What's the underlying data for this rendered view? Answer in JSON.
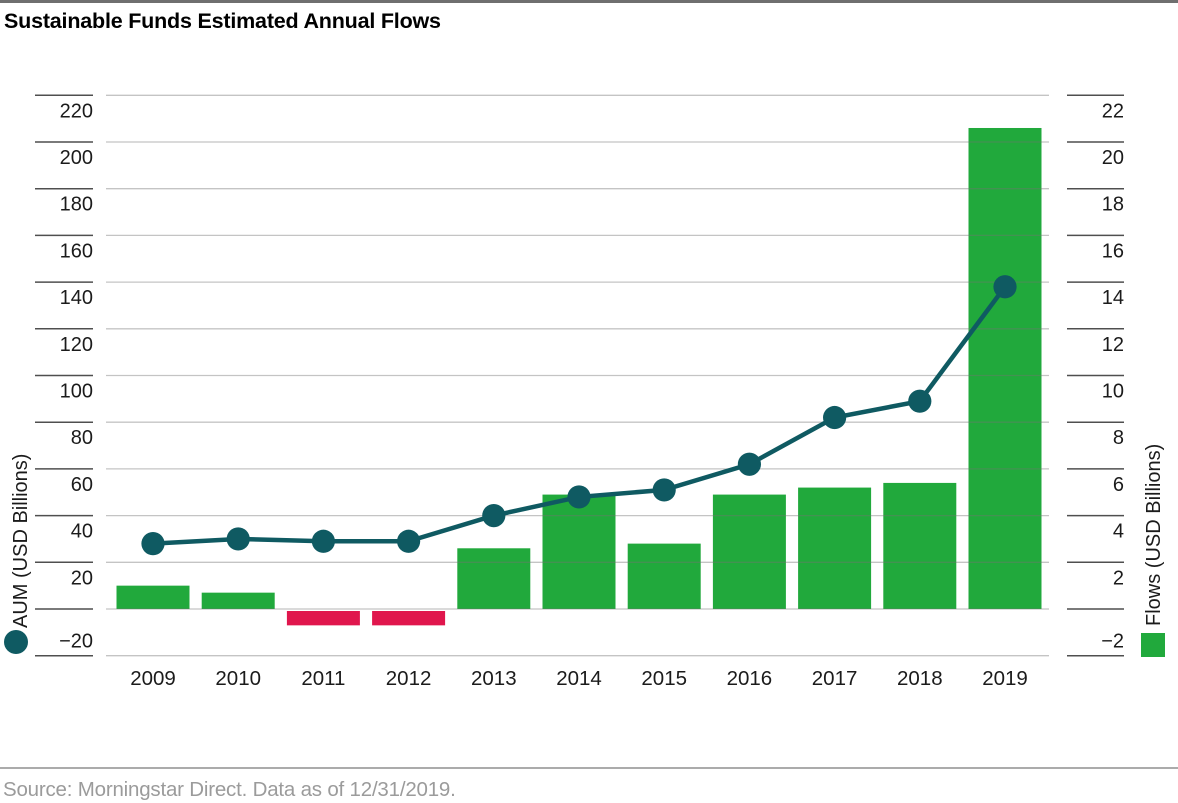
{
  "header": {
    "title": "Sustainable Funds Estimated Annual Flows"
  },
  "source": {
    "text": "Source: Morningstar Direct. Data as of 12/31/2019."
  },
  "colors": {
    "bar_positive": "#21a93c",
    "bar_negative": "#e0164d",
    "line": "#0f5a62",
    "gridline": "#c9c9c9",
    "axis_tick": "#4f4f4f",
    "tick_text": "#1b1b1b",
    "source_text": "#9b9b9b"
  },
  "chart_data": {
    "type": "bar",
    "subtype": "combo bar+line, dual axis",
    "title": "Sustainable Funds Estimated Annual Flows",
    "categories": [
      "2009",
      "2010",
      "2011",
      "2012",
      "2013",
      "2014",
      "2015",
      "2016",
      "2017",
      "2018",
      "2019"
    ],
    "series": [
      {
        "name": "Flows (USD Billions)",
        "type": "bar",
        "axis": "right",
        "values": [
          1.0,
          0.7,
          -0.7,
          -0.7,
          2.6,
          4.9,
          2.8,
          4.9,
          5.2,
          5.4,
          20.6
        ],
        "color_positive": "#21a93c",
        "color_negative": "#e0164d",
        "legend_marker": "square"
      },
      {
        "name": "AUM (USD Billions)",
        "type": "line",
        "axis": "left",
        "values": [
          28,
          30,
          29,
          29,
          40,
          48,
          51,
          62,
          82,
          89,
          138
        ],
        "color": "#0f5a62",
        "legend_marker": "circle"
      }
    ],
    "left_axis": {
      "label": "AUM (USD Billions)",
      "ticks": [
        220,
        200,
        180,
        160,
        140,
        120,
        100,
        80,
        60,
        40,
        20,
        -20
      ],
      "range": [
        -20,
        225
      ],
      "zero_line_unlabeled": true
    },
    "right_axis": {
      "label": "Flows (USD Billions)",
      "ticks": [
        22,
        20,
        18,
        16,
        14,
        12,
        10,
        8,
        6,
        4,
        2,
        -2
      ],
      "range": [
        -2,
        22.5
      ]
    },
    "grid": "horizontal gridlines every 20 left-axis units (2 right-axis units) including zero",
    "legend_position": "markers below rotated axis labels, bottom-left and bottom-right",
    "xlabel": "",
    "ylabel_left": "AUM (USD Billions)",
    "ylabel_right": "Flows (USD Billions)"
  }
}
